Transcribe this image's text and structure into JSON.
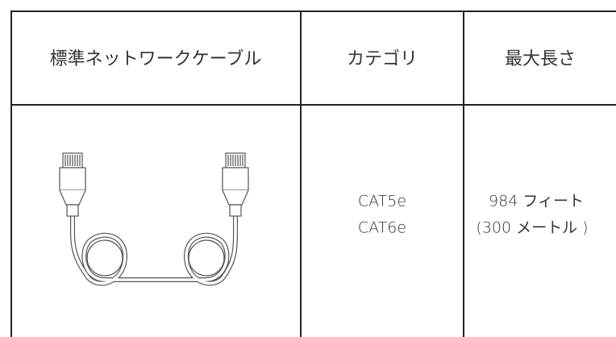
{
  "table": {
    "header": [
      "標準ネットワークケーブル",
      "カテゴリ",
      "最大長さ"
    ],
    "rows": [
      {
        "category": [
          "CAT5e",
          "CAT6e"
        ],
        "max_length": [
          "984 フィート",
          "(300 メートル )"
        ]
      }
    ]
  }
}
